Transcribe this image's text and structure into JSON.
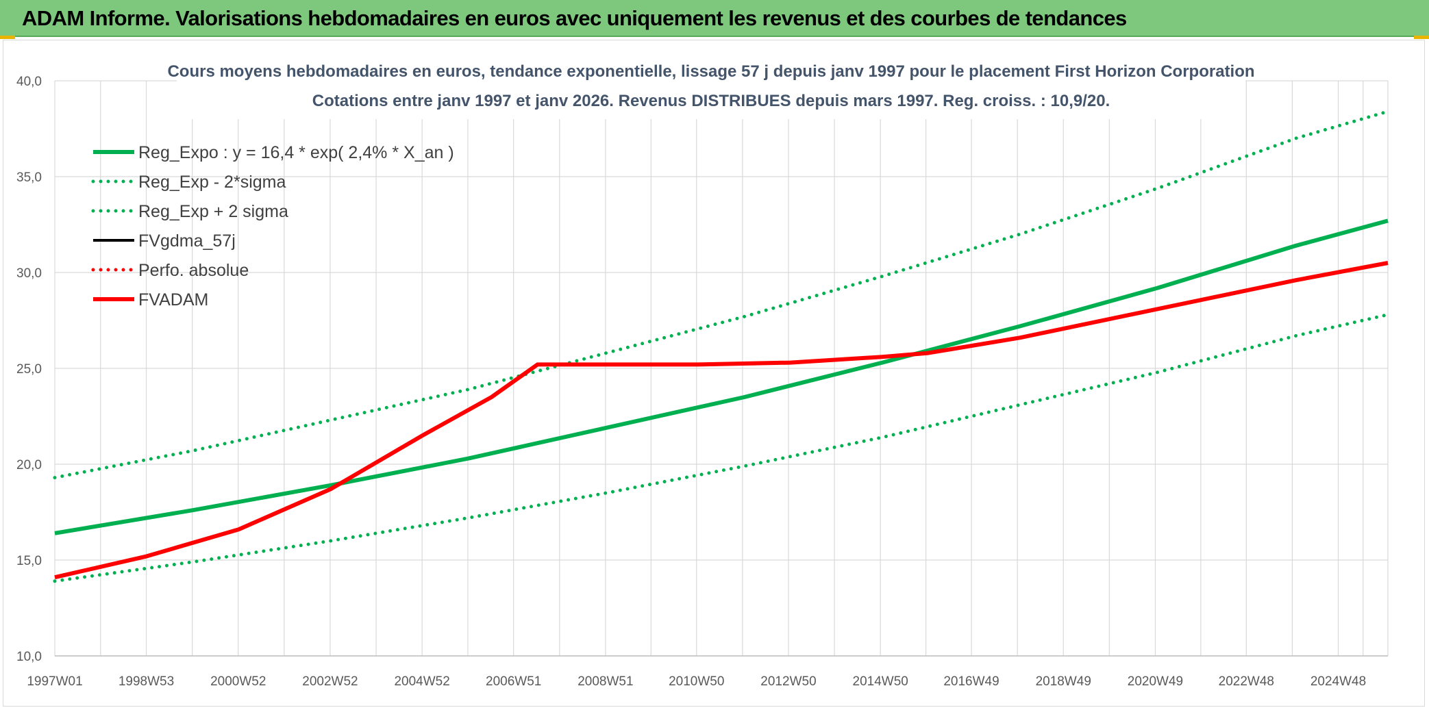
{
  "header": {
    "title": "ADAM Informe. Valorisations hebdomadaires en euros avec uniquement les revenus et des courbes de tendances"
  },
  "colors": {
    "header_bg": "#7dc87d",
    "reg_expo": "#00b050",
    "fvgdma": "#000000",
    "fvadam": "#ff0000",
    "grid": "#d9d9d9"
  },
  "chart_data": {
    "type": "line",
    "title_line1": "Cours moyens hebdomadaires en euros, tendance exponentielle, lissage 57 j depuis janv 1997 pour le placement First Horizon Corporation",
    "title_line2": "Cotations entre janv 1997 et janv 2026. Revenus DISTRIBUES depuis mars 1997. Reg. croiss. : 10,9/20.",
    "ylim": [
      10,
      40
    ],
    "yticks": [
      "10,0",
      "15,0",
      "20,0",
      "25,0",
      "30,0",
      "35,0",
      "40,0"
    ],
    "xlim": [
      1997.0,
      2026.0
    ],
    "xticks": [
      {
        "x": 1997.0,
        "label": "1997W01"
      },
      {
        "x": 1998.99,
        "label": "1998W53"
      },
      {
        "x": 2000.99,
        "label": "2000W52"
      },
      {
        "x": 2002.99,
        "label": "2002W52"
      },
      {
        "x": 2004.99,
        "label": "2004W52"
      },
      {
        "x": 2006.98,
        "label": "2006W51"
      },
      {
        "x": 2008.98,
        "label": "2008W51"
      },
      {
        "x": 2010.96,
        "label": "2010W50"
      },
      {
        "x": 2012.96,
        "label": "2012W50"
      },
      {
        "x": 2014.96,
        "label": "2014W50"
      },
      {
        "x": 2016.94,
        "label": "2016W49"
      },
      {
        "x": 2018.94,
        "label": "2018W49"
      },
      {
        "x": 2020.94,
        "label": "2020W49"
      },
      {
        "x": 2022.92,
        "label": "2022W48"
      },
      {
        "x": 2024.92,
        "label": "2024W48"
      }
    ],
    "grid": true,
    "legend_position": "top-left",
    "series": [
      {
        "name": "Reg_Expo : y = 16,4 * exp( 2,4% *  X_an )",
        "style": "solid-thick",
        "color": "#00b050",
        "x": [
          1997,
          2000,
          2003,
          2006,
          2009,
          2012,
          2015,
          2018,
          2021,
          2024,
          2026
        ],
        "y": [
          16.4,
          17.6,
          18.9,
          20.3,
          21.9,
          23.5,
          25.3,
          27.2,
          29.2,
          31.4,
          32.7
        ]
      },
      {
        "name": "Reg_Exp - 2*sigma",
        "style": "dotted",
        "color": "#00b050",
        "x": [
          1997,
          2000,
          2003,
          2006,
          2009,
          2012,
          2015,
          2018,
          2021,
          2024,
          2026
        ],
        "y": [
          13.9,
          14.9,
          16.0,
          17.2,
          18.5,
          19.9,
          21.4,
          23.1,
          24.8,
          26.7,
          27.8
        ]
      },
      {
        "name": "Reg_Exp + 2 sigma",
        "style": "dotted",
        "color": "#00b050",
        "x": [
          1997,
          2000,
          2003,
          2006,
          2009,
          2012,
          2015,
          2018,
          2021,
          2024,
          2026
        ],
        "y": [
          19.3,
          20.7,
          22.3,
          23.9,
          25.8,
          27.7,
          29.8,
          32.0,
          34.4,
          37.0,
          38.4
        ]
      },
      {
        "name": "FVgdma_57j",
        "style": "solid",
        "color": "#000000",
        "x": [],
        "y": []
      },
      {
        "name": "Perfo. absolue",
        "style": "dotted",
        "color": "#ff0000",
        "x": [],
        "y": []
      },
      {
        "name": "FVADAM",
        "style": "solid-thick",
        "color": "#ff0000",
        "x": [
          1997,
          1999,
          2001,
          2003,
          2005,
          2006.5,
          2007.5,
          2009,
          2011,
          2013,
          2015,
          2016,
          2018,
          2020,
          2022,
          2024,
          2026
        ],
        "y": [
          14.1,
          15.2,
          16.6,
          18.7,
          21.5,
          23.5,
          25.2,
          25.2,
          25.2,
          25.3,
          25.6,
          25.8,
          26.6,
          27.6,
          28.6,
          29.6,
          30.5
        ]
      }
    ]
  }
}
